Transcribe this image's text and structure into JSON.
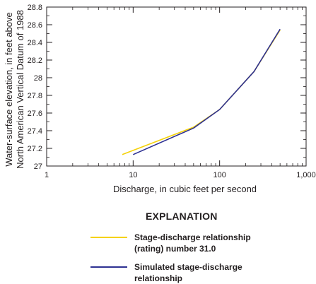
{
  "chart_data": {
    "type": "line",
    "xlabel": "Discharge, in cubic feet per second",
    "ylabel_lines": [
      "Water-surface elevation, in feet above",
      "North American Vertical Datum of 1988"
    ],
    "x_scale": "log",
    "xlim": [
      1,
      1000
    ],
    "ylim": [
      27,
      28.8
    ],
    "x_ticks": [
      1,
      10,
      100,
      1000
    ],
    "x_tick_labels": [
      "1",
      "10",
      "100",
      "1,000"
    ],
    "y_ticks": [
      27,
      27.2,
      27.4,
      27.6,
      27.8,
      28,
      28.2,
      28.4,
      28.6,
      28.8
    ],
    "y_tick_labels": [
      "27",
      "27.2",
      "27.4",
      "27.6",
      "27.8",
      "28",
      "28.2",
      "28.4",
      "28.6",
      "28.8"
    ],
    "grid": false,
    "series": [
      {
        "name": "Stage-discharge relationship (rating) number 31.0",
        "color": "#f5d20a",
        "x": [
          7.5,
          50,
          100,
          250,
          500
        ],
        "y": [
          27.13,
          27.44,
          27.64,
          28.07,
          28.54
        ]
      },
      {
        "name": "Simulated stage-discharge relationship",
        "color": "#2e3192",
        "x": [
          10,
          50,
          100,
          250,
          500
        ],
        "y": [
          27.13,
          27.43,
          27.64,
          28.07,
          28.55
        ]
      }
    ]
  },
  "legend": {
    "title": "EXPLANATION",
    "items": [
      {
        "label": "Stage-discharge relationship\n(rating) number 31.0",
        "color": "#f5d20a"
      },
      {
        "label": "Simulated stage-discharge\nrelationship",
        "color": "#2e3192"
      }
    ]
  }
}
